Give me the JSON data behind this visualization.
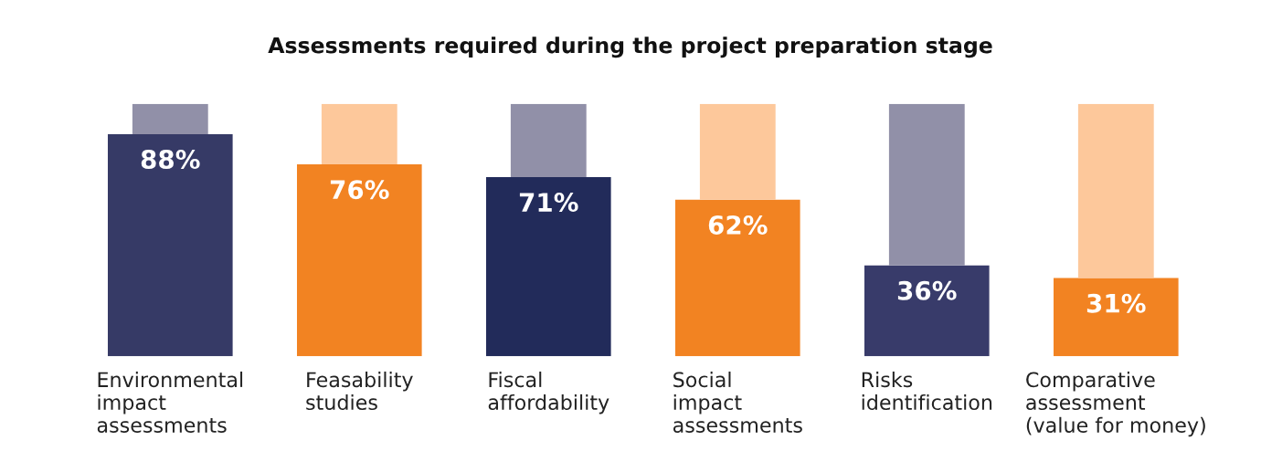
{
  "chart_data": {
    "type": "bar",
    "title": "Assessments required during the project preparation stage",
    "categories": [
      "Environmental\nimpact\nassessments",
      "Feasability\nstudies",
      "Fiscal\naffordability",
      "Social\nimpact\nassessments",
      "Risks\nidentification",
      "Comparative\nassessment\n(value for money)"
    ],
    "stacked": true,
    "ylim": [
      0,
      100
    ],
    "tick_labels": "x",
    "grid": false,
    "legend": false,
    "series": [
      {
        "colors": [
          "#363a66",
          "#f28322",
          "#222b5a",
          "#f28322",
          "#383b6a",
          "#f28322"
        ],
        "values": [
          88,
          76,
          71,
          62,
          36,
          31
        ],
        "value_labels": [
          "88%",
          "76%",
          "71%",
          "62%",
          "36%",
          "31%"
        ]
      },
      {
        "colors": [
          "#9190a8",
          "#fdc89b",
          "#9190a8",
          "#fdc89b",
          "#9190a8",
          "#fdc89b"
        ],
        "values": [
          12,
          24,
          29,
          38,
          64,
          69
        ]
      }
    ]
  }
}
